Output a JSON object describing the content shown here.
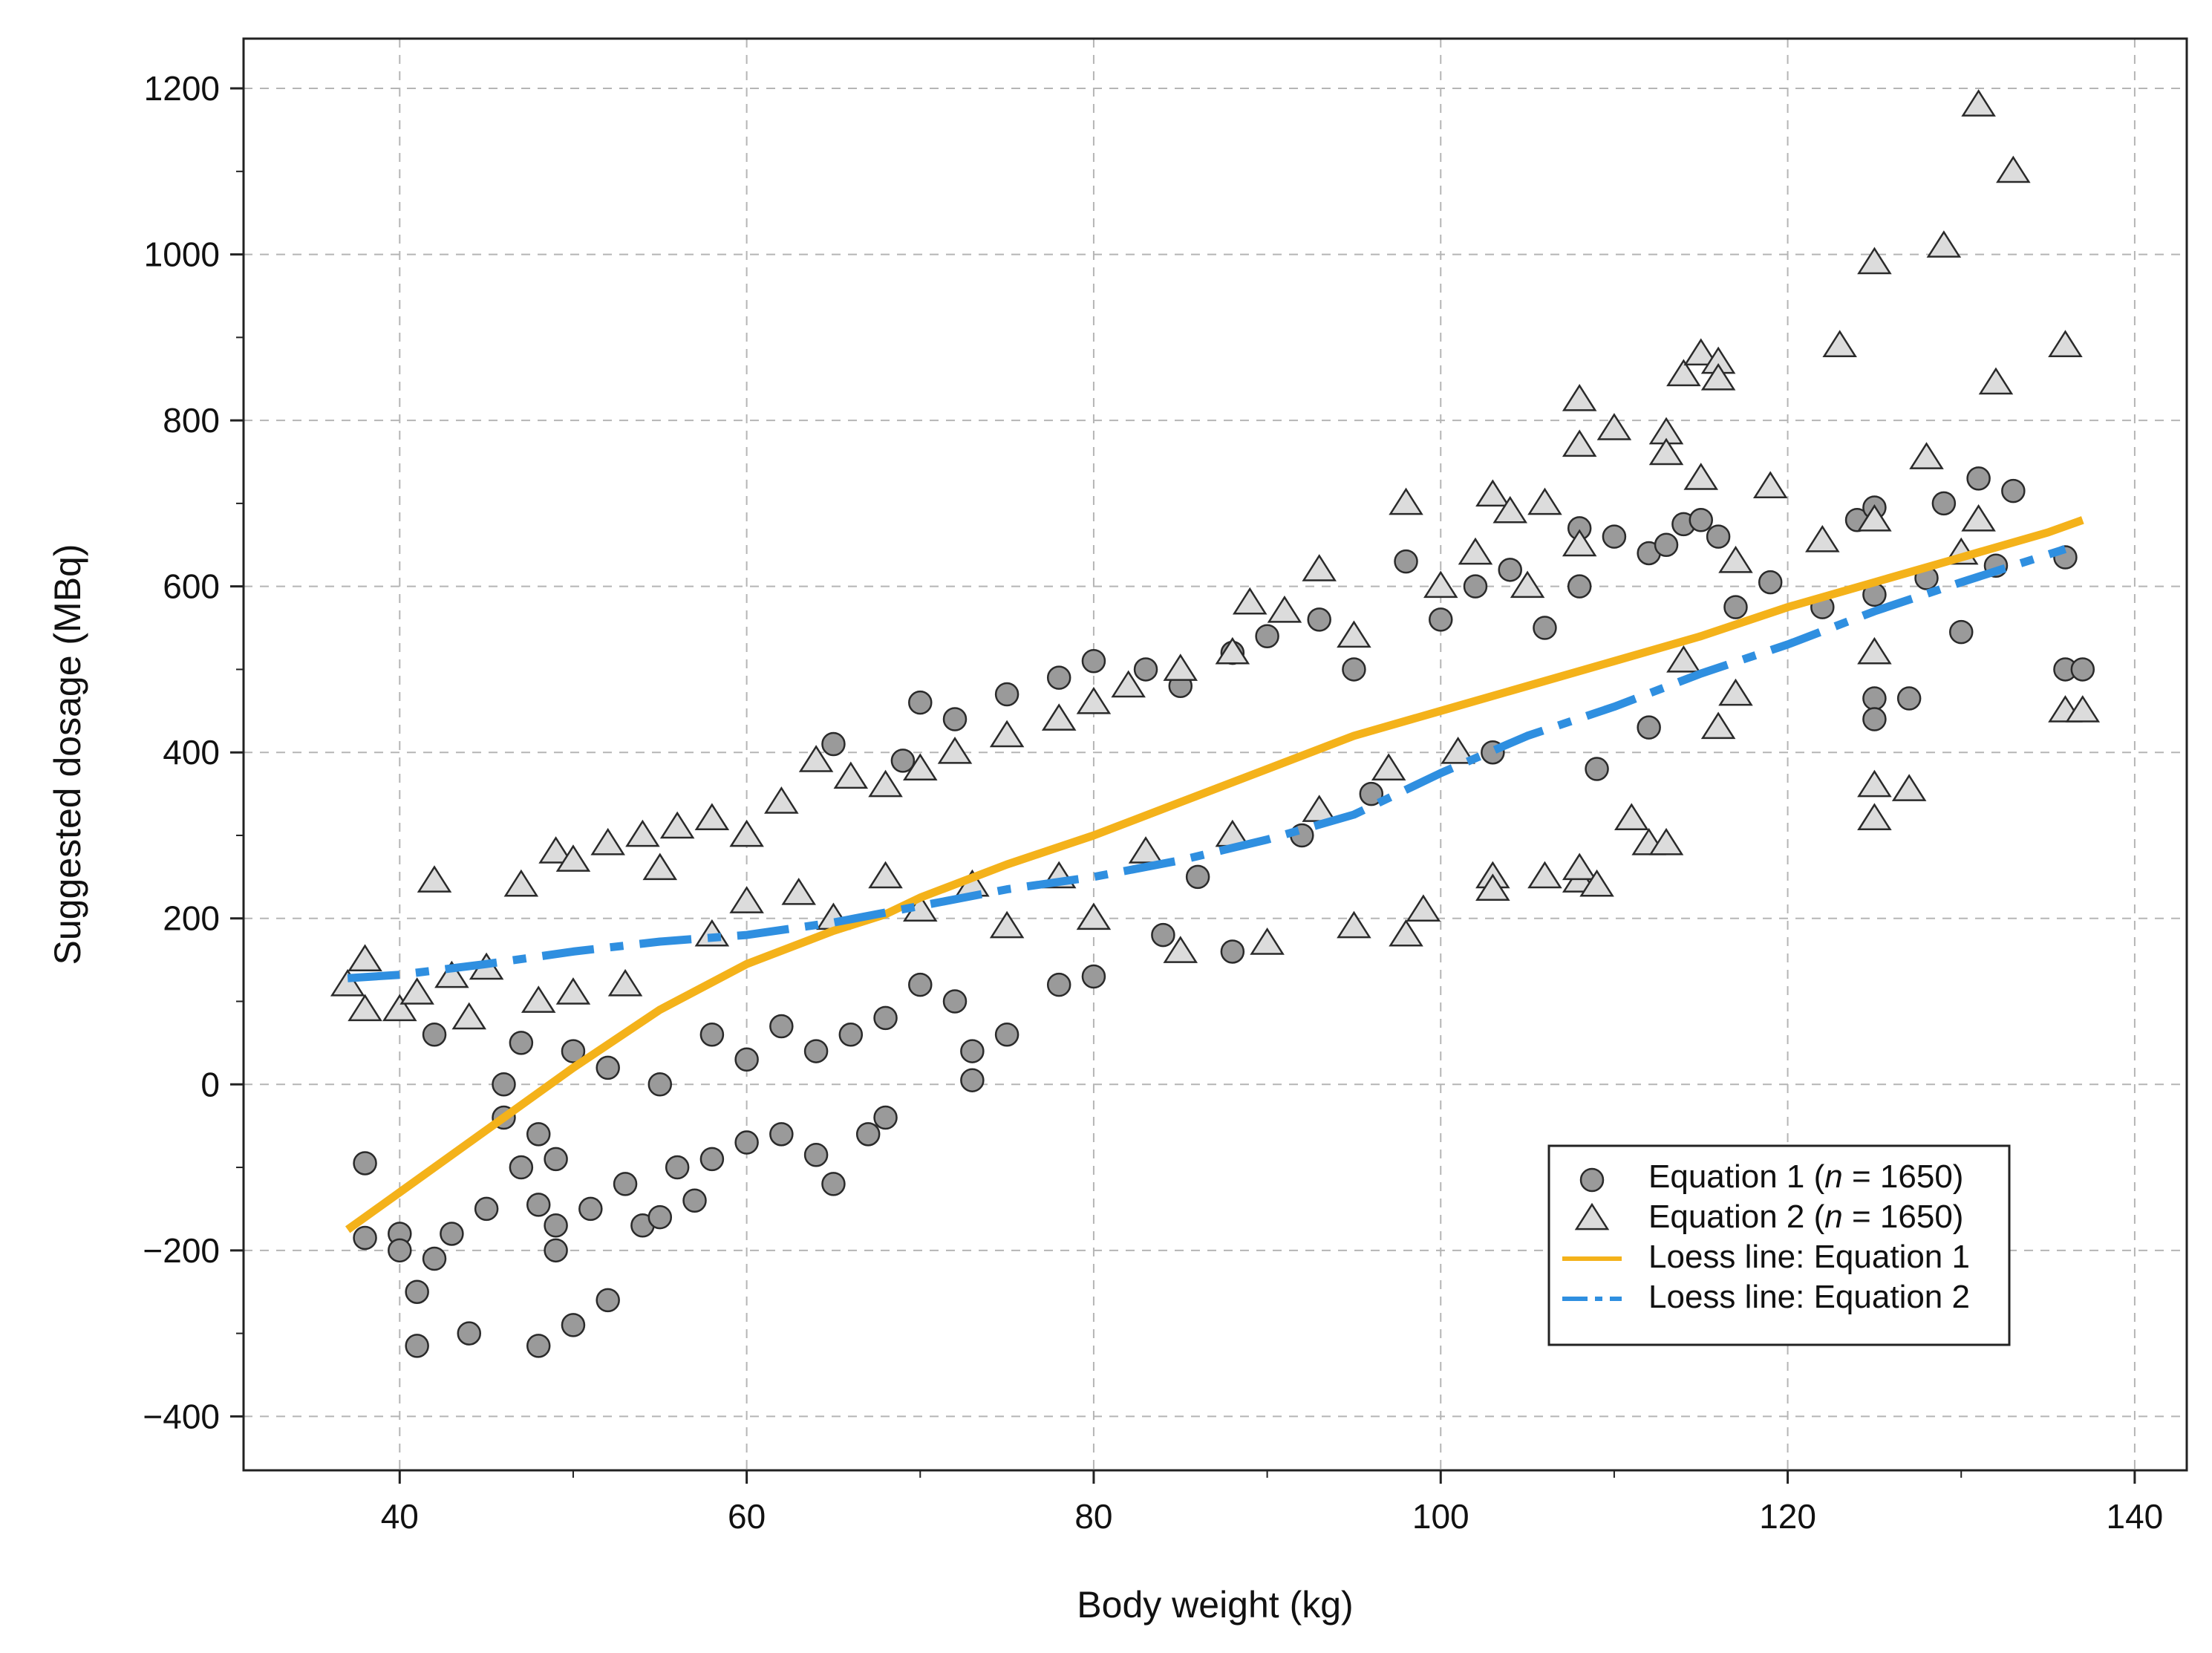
{
  "chart_data": {
    "type": "scatter",
    "title": "",
    "xlabel": "Body weight (kg)",
    "ylabel": "Suggested dosage (MBq)",
    "xlim": [
      31,
      143
    ],
    "ylim": [
      -465,
      1260
    ],
    "xticks": [
      40,
      60,
      80,
      100,
      120,
      140
    ],
    "yticks": [
      -400,
      -200,
      0,
      200,
      400,
      600,
      800,
      1000,
      1200
    ],
    "xtick_labels": [
      "40",
      "60",
      "80",
      "100",
      "120",
      "140"
    ],
    "ytick_labels": [
      "−400",
      "−200",
      "0",
      "200",
      "400",
      "600",
      "800",
      "1000",
      "1200"
    ],
    "grid": true,
    "legend_position": "bottom-right",
    "series": [
      {
        "name": "Equation 1 (n = 1650)",
        "marker": "circle",
        "color": "#9a9a9a",
        "n": 1650,
        "points": [
          [
            38,
            -95
          ],
          [
            38,
            -185
          ],
          [
            40,
            -180
          ],
          [
            40,
            -200
          ],
          [
            41,
            -250
          ],
          [
            41,
            -315
          ],
          [
            42,
            -210
          ],
          [
            42,
            60
          ],
          [
            43,
            -180
          ],
          [
            44,
            -300
          ],
          [
            45,
            -150
          ],
          [
            46,
            0
          ],
          [
            46,
            -40
          ],
          [
            47,
            -100
          ],
          [
            48,
            -60
          ],
          [
            48,
            -145
          ],
          [
            48,
            -315
          ],
          [
            49,
            -90
          ],
          [
            49,
            -170
          ],
          [
            49,
            -200
          ],
          [
            50,
            -290
          ],
          [
            51,
            -150
          ],
          [
            52,
            -260
          ],
          [
            53,
            -120
          ],
          [
            54,
            -170
          ],
          [
            55,
            -160
          ],
          [
            56,
            -100
          ],
          [
            57,
            -140
          ],
          [
            58,
            -90
          ],
          [
            60,
            -70
          ],
          [
            62,
            -60
          ],
          [
            64,
            -85
          ],
          [
            65,
            -120
          ],
          [
            67,
            -60
          ],
          [
            68,
            -40
          ],
          [
            47,
            50
          ],
          [
            50,
            40
          ],
          [
            52,
            20
          ],
          [
            55,
            0
          ],
          [
            58,
            60
          ],
          [
            60,
            30
          ],
          [
            62,
            70
          ],
          [
            64,
            40
          ],
          [
            66,
            60
          ],
          [
            68,
            80
          ],
          [
            70,
            120
          ],
          [
            72,
            100
          ],
          [
            73,
            5
          ],
          [
            73,
            40
          ],
          [
            75,
            60
          ],
          [
            78,
            120
          ],
          [
            80,
            130
          ],
          [
            84,
            180
          ],
          [
            88,
            160
          ],
          [
            65,
            410
          ],
          [
            69,
            390
          ],
          [
            70,
            460
          ],
          [
            72,
            440
          ],
          [
            75,
            470
          ],
          [
            78,
            490
          ],
          [
            80,
            510
          ],
          [
            83,
            500
          ],
          [
            85,
            480
          ],
          [
            88,
            520
          ],
          [
            90,
            540
          ],
          [
            93,
            560
          ],
          [
            95,
            500
          ],
          [
            98,
            630
          ],
          [
            100,
            560
          ],
          [
            102,
            600
          ],
          [
            104,
            620
          ],
          [
            106,
            550
          ],
          [
            108,
            670
          ],
          [
            108,
            600
          ],
          [
            110,
            660
          ],
          [
            112,
            640
          ],
          [
            113,
            650
          ],
          [
            114,
            675
          ],
          [
            115,
            680
          ],
          [
            116,
            660
          ],
          [
            117,
            575
          ],
          [
            119,
            605
          ],
          [
            122,
            575
          ],
          [
            124,
            680
          ],
          [
            125,
            695
          ],
          [
            125,
            590
          ],
          [
            125,
            465
          ],
          [
            125,
            440
          ],
          [
            127,
            465
          ],
          [
            128,
            610
          ],
          [
            129,
            700
          ],
          [
            130,
            545
          ],
          [
            131,
            730
          ],
          [
            132,
            625
          ],
          [
            133,
            715
          ],
          [
            136,
            635
          ],
          [
            136,
            500
          ],
          [
            137,
            500
          ],
          [
            112,
            430
          ],
          [
            109,
            380
          ],
          [
            103,
            400
          ],
          [
            86,
            250
          ],
          [
            92,
            300
          ],
          [
            96,
            350
          ]
        ]
      },
      {
        "name": "Equation 2 (n = 1650)",
        "marker": "triangle",
        "color": "#dcdcdc",
        "n": 1650,
        "points": [
          [
            37,
            120
          ],
          [
            38,
            150
          ],
          [
            38,
            90
          ],
          [
            40,
            90
          ],
          [
            41,
            110
          ],
          [
            42,
            245
          ],
          [
            43,
            130
          ],
          [
            44,
            80
          ],
          [
            45,
            140
          ],
          [
            47,
            240
          ],
          [
            49,
            280
          ],
          [
            50,
            270
          ],
          [
            52,
            290
          ],
          [
            54,
            300
          ],
          [
            56,
            310
          ],
          [
            58,
            320
          ],
          [
            60,
            300
          ],
          [
            62,
            340
          ],
          [
            64,
            390
          ],
          [
            66,
            370
          ],
          [
            68,
            360
          ],
          [
            70,
            380
          ],
          [
            72,
            400
          ],
          [
            75,
            420
          ],
          [
            78,
            440
          ],
          [
            80,
            460
          ],
          [
            82,
            480
          ],
          [
            85,
            500
          ],
          [
            88,
            520
          ],
          [
            89,
            580
          ],
          [
            91,
            570
          ],
          [
            93,
            620
          ],
          [
            95,
            540
          ],
          [
            98,
            700
          ],
          [
            100,
            600
          ],
          [
            102,
            640
          ],
          [
            103,
            710
          ],
          [
            104,
            690
          ],
          [
            105,
            600
          ],
          [
            106,
            700
          ],
          [
            108,
            825
          ],
          [
            108,
            770
          ],
          [
            108,
            650
          ],
          [
            110,
            790
          ],
          [
            113,
            785
          ],
          [
            113,
            760
          ],
          [
            114,
            855
          ],
          [
            115,
            880
          ],
          [
            115,
            730
          ],
          [
            116,
            870
          ],
          [
            116,
            850
          ],
          [
            117,
            630
          ],
          [
            119,
            720
          ],
          [
            122,
            655
          ],
          [
            123,
            890
          ],
          [
            125,
            990
          ],
          [
            125,
            680
          ],
          [
            125,
            360
          ],
          [
            125,
            320
          ],
          [
            125,
            520
          ],
          [
            127,
            355
          ],
          [
            128,
            755
          ],
          [
            129,
            1010
          ],
          [
            130,
            640
          ],
          [
            131,
            1180
          ],
          [
            131,
            680
          ],
          [
            132,
            845
          ],
          [
            133,
            1100
          ],
          [
            136,
            890
          ],
          [
            136,
            450
          ],
          [
            137,
            450
          ],
          [
            98,
            180
          ],
          [
            99,
            210
          ],
          [
            103,
            250
          ],
          [
            103,
            235
          ],
          [
            106,
            250
          ],
          [
            108,
            245
          ],
          [
            108,
            260
          ],
          [
            109,
            240
          ],
          [
            111,
            320
          ],
          [
            112,
            290
          ],
          [
            113,
            290
          ],
          [
            114,
            510
          ],
          [
            116,
            430
          ],
          [
            117,
            470
          ],
          [
            55,
            260
          ],
          [
            60,
            220
          ],
          [
            65,
            200
          ],
          [
            70,
            210
          ],
          [
            75,
            190
          ],
          [
            80,
            200
          ],
          [
            85,
            160
          ],
          [
            90,
            170
          ],
          [
            95,
            190
          ],
          [
            48,
            100
          ],
          [
            50,
            110
          ],
          [
            53,
            120
          ],
          [
            58,
            180
          ],
          [
            63,
            230
          ],
          [
            68,
            250
          ],
          [
            73,
            240
          ],
          [
            78,
            250
          ],
          [
            83,
            280
          ],
          [
            88,
            300
          ],
          [
            93,
            330
          ],
          [
            97,
            380
          ],
          [
            101,
            400
          ]
        ]
      }
    ],
    "loess": [
      {
        "name": "Loess line:  Equation 1",
        "color": "#f4b21a",
        "style": "solid",
        "x": [
          37,
          40,
          45,
          50,
          55,
          60,
          65,
          68,
          70,
          75,
          80,
          85,
          90,
          95,
          100,
          105,
          110,
          115,
          120,
          125,
          130,
          135,
          137
        ],
        "y": [
          -175,
          -130,
          -55,
          20,
          90,
          145,
          185,
          205,
          225,
          265,
          300,
          340,
          380,
          420,
          450,
          480,
          510,
          540,
          575,
          605,
          635,
          665,
          680
        ]
      },
      {
        "name": "Loess line:  Equation 2",
        "color": "#2f8fe0",
        "style": "dashdot",
        "x": [
          37,
          40,
          45,
          50,
          55,
          60,
          65,
          70,
          75,
          80,
          85,
          90,
          95,
          100,
          105,
          110,
          115,
          120,
          125,
          130,
          136
        ],
        "y": [
          128,
          132,
          145,
          160,
          172,
          180,
          195,
          215,
          235,
          250,
          270,
          295,
          325,
          375,
          420,
          455,
          495,
          530,
          570,
          605,
          645
        ]
      }
    ],
    "legend": {
      "items": [
        {
          "marker": "circle",
          "label_prefix": "Equation 1 (",
          "label_n": "n",
          "label_suffix": " = 1650)"
        },
        {
          "marker": "triangle",
          "label_prefix": "Equation 2 (",
          "label_n": "n",
          "label_suffix": " = 1650)"
        },
        {
          "marker": "solid-line",
          "label": "Loess line:  Equation 1"
        },
        {
          "marker": "dashdot-line",
          "label": "Loess line:  Equation 2"
        }
      ]
    }
  }
}
